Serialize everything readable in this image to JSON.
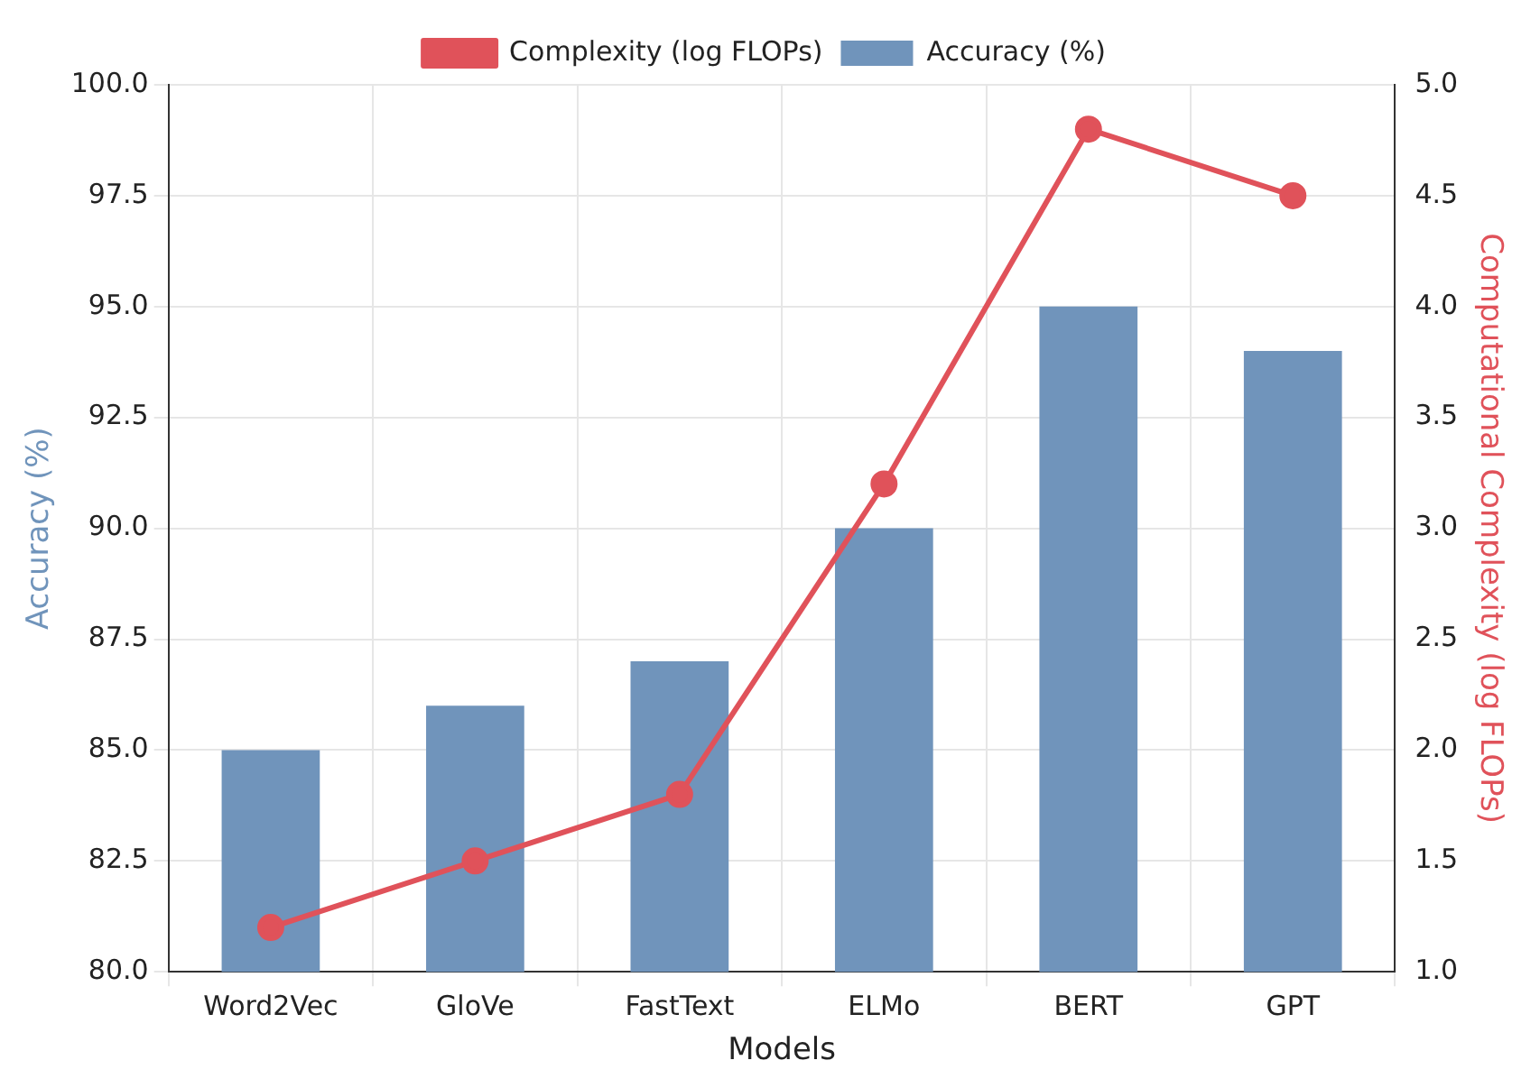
{
  "chart_data": {
    "type": "bar",
    "xlabel": "Models",
    "ylabel": "Accuracy (%)",
    "y2label": "Computational Complexity (log FLOPs)",
    "categories": [
      "Word2Vec",
      "GloVe",
      "FastText",
      "ELMo",
      "BERT",
      "GPT"
    ],
    "series": [
      {
        "name": "Accuracy (%)",
        "color": "#7094bb",
        "values": [
          85,
          86,
          87,
          90,
          95,
          94
        ]
      },
      {
        "name": "Complexity (log FLOPs)",
        "type": "line",
        "axis": "y2",
        "color": "#e0525a",
        "values": [
          1.2,
          1.5,
          1.8,
          3.2,
          4.8,
          4.5
        ]
      }
    ],
    "ylim": [
      80,
      100
    ],
    "yticks": [
      {
        "value": 80,
        "label": "80.0"
      },
      {
        "value": 82.5,
        "label": "82.5"
      },
      {
        "value": 85,
        "label": "85.0"
      },
      {
        "value": 87.5,
        "label": "87.5"
      },
      {
        "value": 90,
        "label": "90.0"
      },
      {
        "value": 92.5,
        "label": "92.5"
      },
      {
        "value": 95,
        "label": "95.0"
      },
      {
        "value": 97.5,
        "label": "97.5"
      },
      {
        "value": 100,
        "label": "100.0"
      }
    ],
    "y2lim": [
      1,
      5
    ],
    "y2ticks": [
      {
        "value": 1,
        "label": "1.0"
      },
      {
        "value": 1.5,
        "label": "1.5"
      },
      {
        "value": 2,
        "label": "2.0"
      },
      {
        "value": 2.5,
        "label": "2.5"
      },
      {
        "value": 3,
        "label": "3.0"
      },
      {
        "value": 3.5,
        "label": "3.5"
      },
      {
        "value": 4,
        "label": "4.0"
      },
      {
        "value": 4.5,
        "label": "4.5"
      },
      {
        "value": 5,
        "label": "5.0"
      }
    ],
    "grid": true,
    "legend": "top",
    "marker": "circle"
  }
}
